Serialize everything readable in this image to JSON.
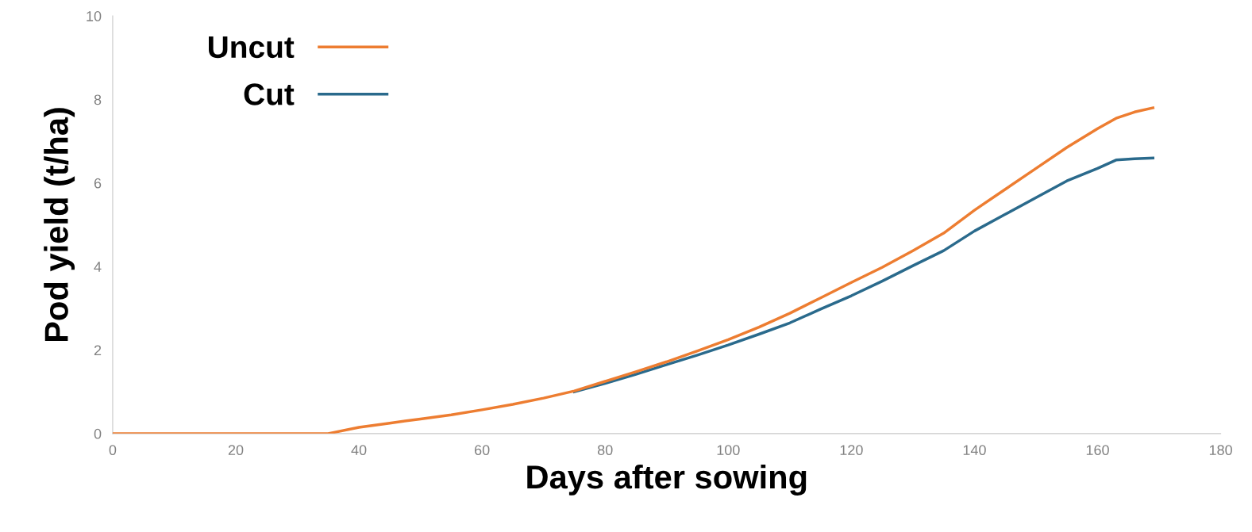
{
  "chart_data": {
    "type": "line",
    "xlabel": "Days after sowing",
    "ylabel": "Pod yield (t/ha)",
    "x": [
      0,
      35,
      40,
      45,
      50,
      55,
      60,
      65,
      70,
      75,
      80,
      85,
      90,
      95,
      100,
      105,
      110,
      115,
      120,
      125,
      130,
      135,
      140,
      145,
      150,
      155,
      160,
      163,
      166,
      169
    ],
    "series": [
      {
        "name": "Uncut",
        "color": "#ed7d31",
        "values": [
          0,
          0,
          0.15,
          0.25,
          0.35,
          0.45,
          0.57,
          0.7,
          0.85,
          1.02,
          1.25,
          1.48,
          1.72,
          1.98,
          2.25,
          2.55,
          2.88,
          3.25,
          3.62,
          3.98,
          4.38,
          4.8,
          5.35,
          5.85,
          6.35,
          6.85,
          7.3,
          7.55,
          7.7,
          7.8
        ]
      },
      {
        "name": "Cut",
        "color": "#2a6a8c",
        "values": [
          null,
          null,
          null,
          null,
          null,
          null,
          null,
          null,
          null,
          1.0,
          1.2,
          1.42,
          1.65,
          1.88,
          2.12,
          2.38,
          2.65,
          2.98,
          3.3,
          3.65,
          4.02,
          4.38,
          4.85,
          5.25,
          5.65,
          6.05,
          6.35,
          6.55,
          6.58,
          6.6
        ]
      }
    ],
    "xlim": [
      0,
      180
    ],
    "xticks": [
      0,
      20,
      40,
      60,
      80,
      100,
      120,
      140,
      160,
      180
    ],
    "ylim": [
      0,
      10
    ],
    "yticks": [
      0,
      2,
      4,
      6,
      8,
      10
    ],
    "grid": false,
    "legend": "top left"
  }
}
